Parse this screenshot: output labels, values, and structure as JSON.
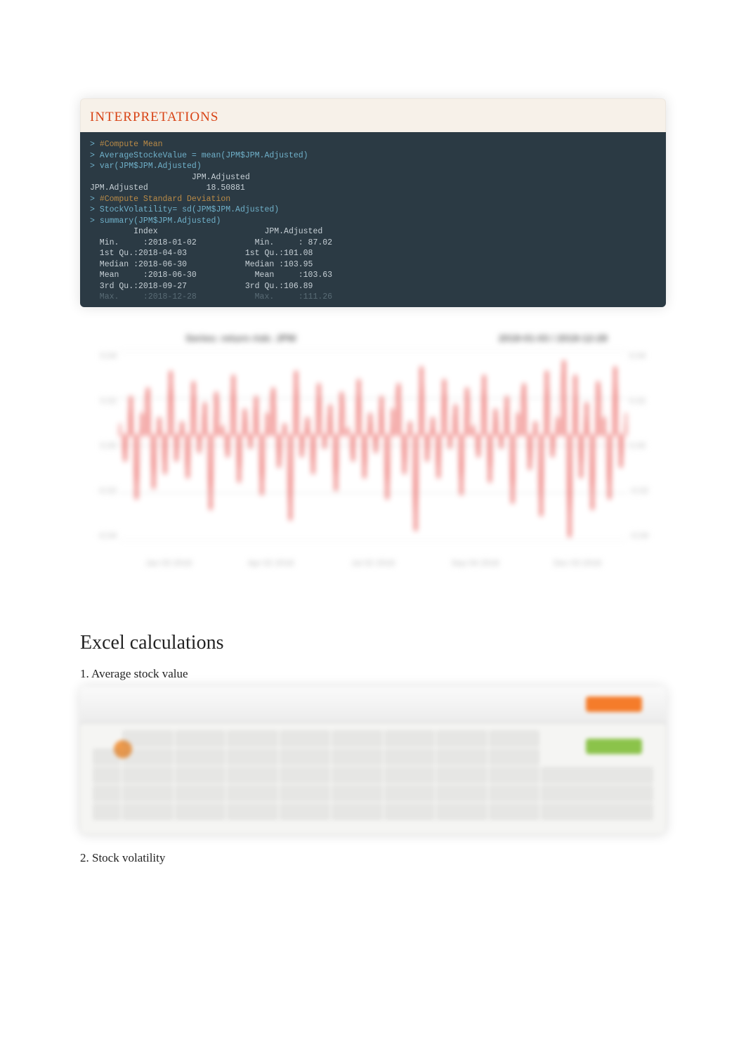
{
  "card": {
    "title": "INTERPRETATIONS"
  },
  "terminal": {
    "lines": [
      {
        "prompt": "> ",
        "klass": "comment",
        "text": "#Compute Mean"
      },
      {
        "prompt": "> ",
        "klass": "prompt",
        "text": "AverageStockeValue = mean(JPM$JPM.Adjusted)"
      },
      {
        "prompt": "> ",
        "klass": "prompt",
        "text": "var(JPM$JPM.Adjusted)"
      },
      {
        "prompt": "",
        "klass": "",
        "text": "                     JPM.Adjusted"
      },
      {
        "prompt": "",
        "klass": "",
        "text": "JPM.Adjusted            18.50881"
      },
      {
        "prompt": "",
        "klass": "",
        "text": ""
      },
      {
        "prompt": "> ",
        "klass": "comment",
        "text": "#Compute Standard Deviation"
      },
      {
        "prompt": "> ",
        "klass": "prompt",
        "text": "StockVolatility= sd(JPM$JPM.Adjusted)"
      },
      {
        "prompt": "> ",
        "klass": "prompt",
        "text": "summary(JPM$JPM.Adjusted)"
      },
      {
        "prompt": "",
        "klass": "",
        "text": "         Index                      JPM.Adjusted"
      },
      {
        "prompt": "",
        "klass": "",
        "text": "  Min.     :2018-01-02            Min.     : 87.02"
      },
      {
        "prompt": "",
        "klass": "",
        "text": "  1st Qu.:2018-04-03            1st Qu.:101.08"
      },
      {
        "prompt": "",
        "klass": "",
        "text": "  Median :2018-06-30            Median :103.95"
      },
      {
        "prompt": "",
        "klass": "",
        "text": "  Mean     :2018-06-30            Mean     :103.63"
      },
      {
        "prompt": "",
        "klass": "",
        "text": "  3rd Qu.:2018-09-27            3rd Qu.:106.89"
      },
      {
        "prompt": "",
        "klass": "fade row-fade",
        "text": "  Max.     :2018-12-28            Max.     :111.26"
      }
    ]
  },
  "chart": {
    "title_left": "Series: return   risk: JPM",
    "title_right": "2018-01-03 / 2018-12-28",
    "series_color": "#e53935",
    "grid_color": "#dddddd",
    "background": "#ffffff",
    "ylim": [
      -0.05,
      0.04
    ],
    "yticks": [
      "0.04",
      "0.02",
      "0.00",
      "-0.02",
      "-0.04"
    ],
    "xlabels": [
      "Jan 03 2018",
      "Apr 02 2018",
      "Jul 02 2018",
      "Sep 04 2018",
      "Dec 03 2018"
    ],
    "values": [
      0.005,
      -0.012,
      0.018,
      -0.03,
      0.01,
      0.022,
      -0.025,
      0.008,
      -0.018,
      0.03,
      -0.012,
      0.006,
      -0.02,
      0.025,
      -0.008,
      0.015,
      -0.035,
      0.02,
      0.004,
      -0.01,
      0.028,
      -0.022,
      0.012,
      -0.006,
      0.018,
      -0.028,
      0.01,
      0.022,
      -0.015,
      0.005,
      -0.04,
      0.03,
      -0.01,
      0.008,
      -0.018,
      0.024,
      -0.006,
      0.014,
      -0.026,
      0.02,
      0.003,
      -0.012,
      0.026,
      -0.02,
      0.01,
      -0.008,
      0.018,
      -0.03,
      0.012,
      0.024,
      -0.018,
      0.006,
      -0.045,
      0.032,
      -0.012,
      0.008,
      -0.02,
      0.026,
      -0.006,
      0.014,
      -0.028,
      0.022,
      0.004,
      -0.01,
      0.028,
      -0.022,
      0.012,
      -0.006,
      0.018,
      -0.032,
      0.01,
      0.024,
      -0.016,
      0.006,
      -0.038,
      0.03,
      -0.01,
      0.008,
      0.035,
      -0.048,
      0.028,
      -0.02,
      0.015,
      -0.035,
      0.025,
      0.008,
      -0.03,
      0.032,
      -0.015,
      0.01
    ]
  },
  "excel_section": {
    "title": "Excel calculations",
    "item1": "1. Average stock value",
    "item2": "2. Stock volatility"
  }
}
